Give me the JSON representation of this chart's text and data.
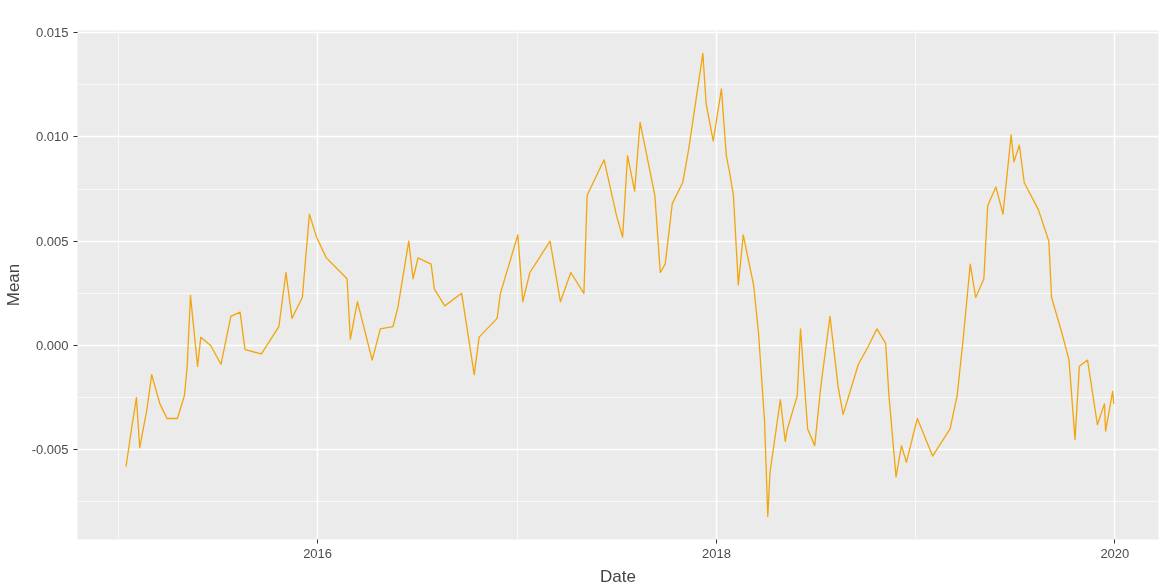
{
  "chart_data": {
    "type": "line",
    "xlabel": "Date",
    "ylabel": "Mean",
    "x": [
      "2015-01-15",
      "2015-01-25",
      "2015-02-03",
      "2015-02-09",
      "2015-02-22",
      "2015-03-03",
      "2015-03-18",
      "2015-03-31",
      "2015-04-19",
      "2015-05-02",
      "2015-05-07",
      "2015-05-13",
      "2015-05-26",
      "2015-06-01",
      "2015-06-19",
      "2015-07-08",
      "2015-07-26",
      "2015-08-12",
      "2015-08-21",
      "2015-09-20",
      "2015-10-22",
      "2015-11-04",
      "2015-11-15",
      "2015-12-04",
      "2015-12-17",
      "2015-12-30",
      "2016-01-17",
      "2016-02-24",
      "2016-03-01",
      "2016-03-14",
      "2016-04-10",
      "2016-04-25",
      "2016-05-18",
      "2016-05-27",
      "2016-06-16",
      "2016-06-24",
      "2016-07-03",
      "2016-07-27",
      "2016-08-02",
      "2016-08-21",
      "2016-09-21",
      "2016-10-14",
      "2016-10-23",
      "2016-11-25",
      "2016-12-01",
      "2017-01-02",
      "2017-01-11",
      "2017-01-24",
      "2017-03-02",
      "2017-03-21",
      "2017-04-09",
      "2017-05-03",
      "2017-05-09",
      "2017-06-09",
      "2017-07-02",
      "2017-07-13",
      "2017-07-22",
      "2017-08-04",
      "2017-08-14",
      "2017-09-10",
      "2017-09-20",
      "2017-09-29",
      "2017-10-12",
      "2017-10-31",
      "2017-11-11",
      "2017-12-07",
      "2017-12-13",
      "2017-12-26",
      "2018-01-10",
      "2018-01-19",
      "2018-01-25",
      "2018-02-01",
      "2018-02-10",
      "2018-02-19",
      "2018-03-10",
      "2018-03-19",
      "2018-03-30",
      "2018-04-05",
      "2018-04-09",
      "2018-04-28",
      "2018-05-07",
      "2018-05-11",
      "2018-05-29",
      "2018-06-04",
      "2018-06-17",
      "2018-06-30",
      "2018-07-11",
      "2018-07-28",
      "2018-08-12",
      "2018-08-21",
      "2018-09-18",
      "2018-10-07",
      "2018-10-22",
      "2018-11-07",
      "2018-11-13",
      "2018-11-26",
      "2018-12-06",
      "2018-12-15",
      "2019-01-04",
      "2019-02-01",
      "2019-03-05",
      "2019-03-18",
      "2019-03-29",
      "2019-04-11",
      "2019-04-21",
      "2019-05-06",
      "2019-05-13",
      "2019-05-28",
      "2019-06-10",
      "2019-06-25",
      "2019-06-30",
      "2019-07-10",
      "2019-07-19",
      "2019-08-14",
      "2019-09-02",
      "2019-09-07",
      "2019-09-26",
      "2019-10-09",
      "2019-10-20",
      "2019-10-28",
      "2019-11-12",
      "2019-11-30",
      "2019-12-13",
      "2019-12-15",
      "2019-12-28",
      "2019-12-30"
    ],
    "series": [
      {
        "color": "#f2a50c",
        "values": [
          -0.0058,
          -0.004,
          -0.0025,
          -0.0049,
          -0.0031,
          -0.0014,
          -0.0028,
          -0.0035,
          -0.0035,
          -0.0024,
          -0.001,
          0.0024,
          -0.001,
          0.0004,
          0.0,
          -0.0009,
          0.0014,
          0.0016,
          -0.0002,
          -0.0004,
          0.0009,
          0.0035,
          0.0013,
          0.0023,
          0.0063,
          0.0052,
          0.0042,
          0.0032,
          0.0003,
          0.0021,
          -0.0007,
          0.0008,
          0.0009,
          0.0018,
          0.005,
          0.0032,
          0.0042,
          0.0039,
          0.0027,
          0.0019,
          0.0025,
          -0.0014,
          0.0004,
          0.0013,
          0.0025,
          0.0053,
          0.0021,
          0.0035,
          0.005,
          0.0021,
          0.0035,
          0.0025,
          0.0072,
          0.0089,
          0.0062,
          0.0052,
          0.0091,
          0.0074,
          0.0107,
          0.0072,
          0.0035,
          0.0039,
          0.0068,
          0.0078,
          0.0094,
          0.014,
          0.0116,
          0.0098,
          0.0123,
          0.0091,
          0.0083,
          0.0072,
          0.0029,
          0.0053,
          0.0029,
          0.0006,
          -0.0036,
          -0.0082,
          -0.0061,
          -0.0026,
          -0.0046,
          -0.004,
          -0.0024,
          0.0008,
          -0.004,
          -0.0048,
          -0.002,
          0.0014,
          -0.002,
          -0.0033,
          -0.0009,
          0.0,
          0.0008,
          0.0001,
          -0.0024,
          -0.0063,
          -0.0048,
          -0.0056,
          -0.0035,
          -0.0053,
          -0.004,
          -0.0024,
          0.0003,
          0.0039,
          0.0023,
          0.0032,
          0.0067,
          0.0076,
          0.0063,
          0.0101,
          0.0088,
          0.0096,
          0.0078,
          0.0065,
          0.005,
          0.0023,
          0.0006,
          -0.0007,
          -0.0045,
          -0.001,
          -0.0007,
          -0.0038,
          -0.0028,
          -0.0041,
          -0.0022,
          -0.0028
        ]
      }
    ],
    "xlim": [
      "2014-10-18",
      "2020-03-21"
    ],
    "xticks": [
      {
        "value": "2016-01-01",
        "label": "2016"
      },
      {
        "value": "2018-01-01",
        "label": "2018"
      },
      {
        "value": "2020-01-01",
        "label": "2020"
      }
    ],
    "ylim": [
      -0.0093,
      0.0151
    ],
    "yticks": [
      {
        "value": -0.005,
        "label": "-0.005"
      },
      {
        "value": 0,
        "label": "0.000"
      },
      {
        "value": 0.005,
        "label": "0.005"
      },
      {
        "value": 0.01,
        "label": "0.010"
      },
      {
        "value": 0.015,
        "label": "0.015"
      }
    ],
    "grid": true,
    "line_style": "solid"
  }
}
